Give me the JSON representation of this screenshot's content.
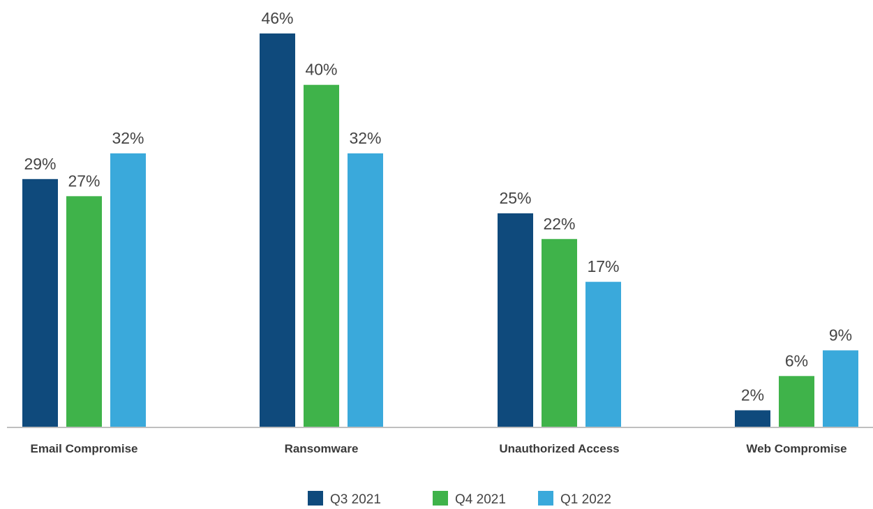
{
  "chart_data": {
    "type": "bar",
    "categories": [
      "Email Compromise",
      "Ransomware",
      "Unauthorized Access",
      "Web Compromise"
    ],
    "series": [
      {
        "name": "Q3 2021",
        "color": "#0f4a7c",
        "values": [
          29,
          46,
          25,
          2
        ]
      },
      {
        "name": "Q4 2021",
        "color": "#3fb34a",
        "values": [
          27,
          40,
          22,
          6
        ]
      },
      {
        "name": "Q1 2022",
        "color": "#3aa9db",
        "values": [
          32,
          32,
          17,
          9
        ]
      }
    ],
    "value_suffix": "%",
    "title": "",
    "xlabel": "",
    "ylabel": "",
    "ylim": [
      0,
      46
    ],
    "grid": false,
    "legend_position": "bottom-center",
    "axis_color": "#bfbfbf"
  }
}
